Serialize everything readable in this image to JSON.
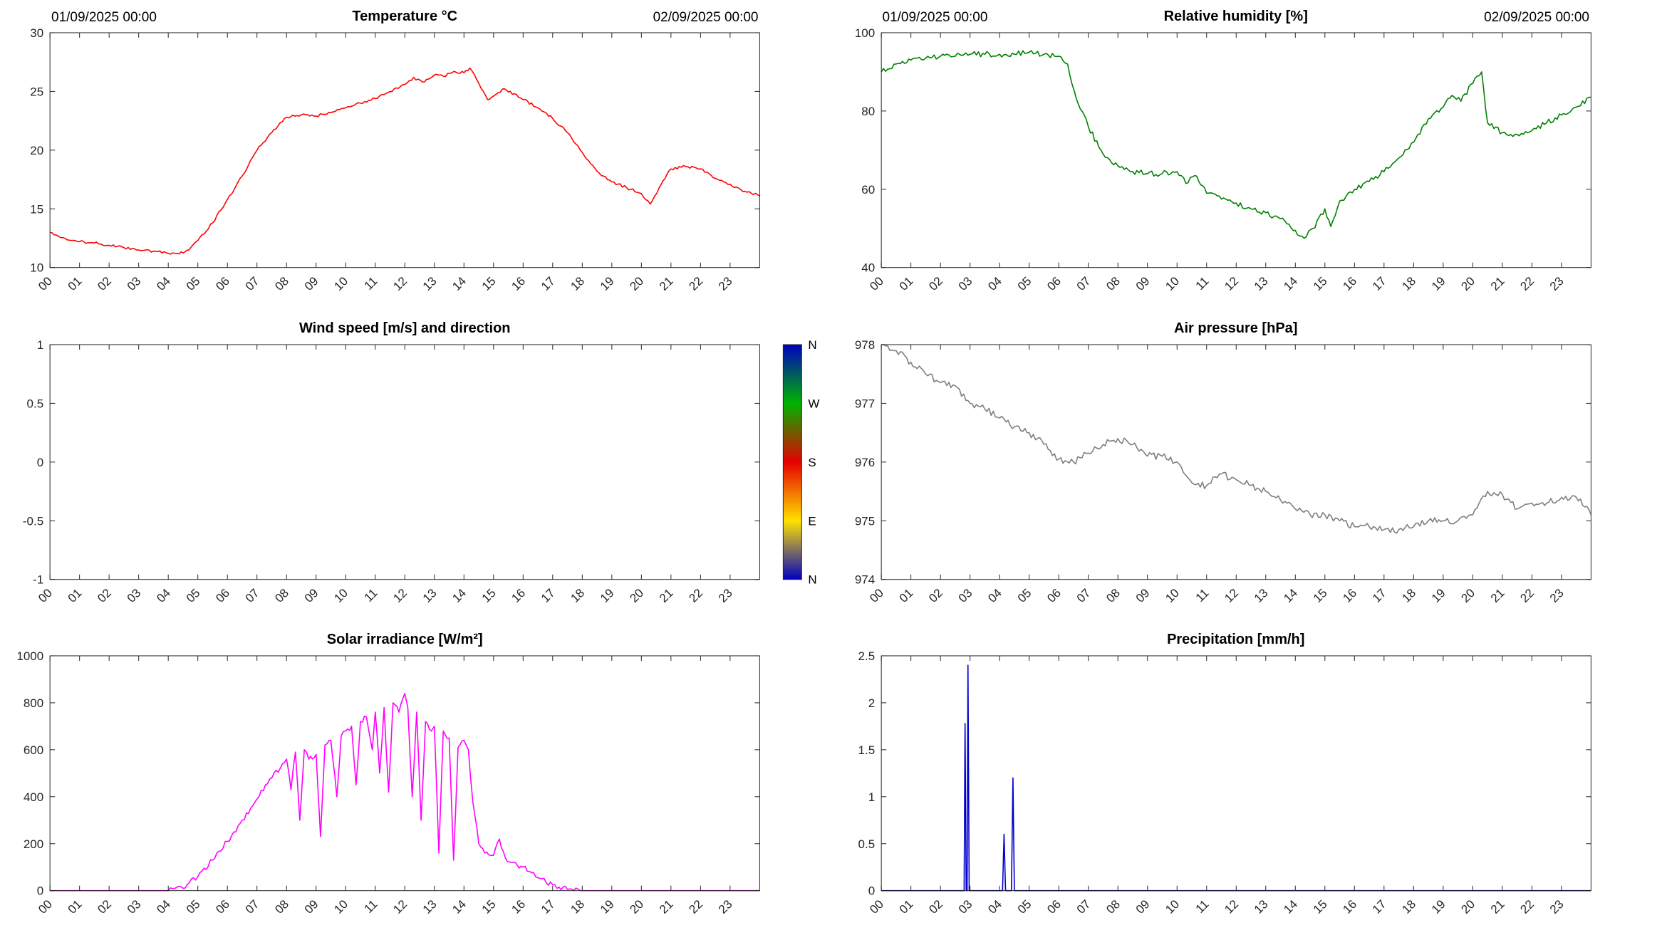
{
  "figure": {
    "background": "#ffffff"
  },
  "hours": [
    "00",
    "01",
    "02",
    "03",
    "04",
    "05",
    "06",
    "07",
    "08",
    "09",
    "10",
    "11",
    "12",
    "13",
    "14",
    "15",
    "16",
    "17",
    "18",
    "19",
    "20",
    "21",
    "22",
    "23"
  ],
  "chart_data": [
    {
      "id": "temperature",
      "type": "line",
      "title": "Temperature °C",
      "annotations": {
        "left": "01/09/2025 00:00",
        "right": "02/09/2025 00:00"
      },
      "color": "#ff0000",
      "xlim": [
        0,
        24
      ],
      "ylim": [
        10,
        30
      ],
      "yticks": [
        10,
        15,
        20,
        25,
        30
      ],
      "noise": 0.12,
      "x": [
        0,
        0.5,
        1,
        1.5,
        2,
        2.5,
        3,
        3.5,
        4,
        4.3,
        4.7,
        5,
        5.5,
        6,
        6.5,
        7,
        7.5,
        8,
        8.5,
        9,
        9.5,
        10,
        10.5,
        11,
        11.5,
        12,
        12.3,
        12.6,
        13,
        13.3,
        13.6,
        14,
        14.2,
        14.5,
        14.8,
        15,
        15.3,
        15.7,
        16,
        16.5,
        17,
        17.5,
        18,
        18.5,
        19,
        19.5,
        20,
        20.3,
        20.6,
        21,
        21.5,
        22,
        22.5,
        23,
        23.5,
        24
      ],
      "y": [
        13,
        12.5,
        12.2,
        12.1,
        11.9,
        11.7,
        11.5,
        11.4,
        11.2,
        11.2,
        11.5,
        12.3,
        13.8,
        15.8,
        17.8,
        20,
        21.5,
        22.8,
        23,
        22.9,
        23.2,
        23.6,
        24,
        24.4,
        25,
        25.6,
        26.2,
        25.8,
        26.4,
        26.3,
        26.6,
        26.6,
        27,
        25.7,
        24.3,
        24.6,
        25.2,
        24.8,
        24.3,
        23.6,
        22.7,
        21.5,
        19.8,
        18.2,
        17.3,
        16.8,
        16.3,
        15.4,
        16.8,
        18.4,
        18.6,
        18.4,
        17.6,
        17.1,
        16.5,
        16.1
      ]
    },
    {
      "id": "humidity",
      "type": "line",
      "title": "Relative humidity [%]",
      "annotations": {
        "left": "01/09/2025 00:00",
        "right": "02/09/2025 00:00"
      },
      "color": "#008000",
      "xlim": [
        0,
        24
      ],
      "ylim": [
        40,
        100
      ],
      "yticks": [
        40,
        60,
        80,
        100
      ],
      "noise": 0.7,
      "x": [
        0,
        0.5,
        1,
        1.5,
        2,
        2.5,
        3,
        3.5,
        4,
        4.5,
        5,
        5.5,
        6,
        6.3,
        6.6,
        7,
        7.5,
        8,
        8.5,
        9,
        9.5,
        10,
        10.3,
        10.6,
        11,
        11.5,
        12,
        12.5,
        13,
        13.5,
        14,
        14.3,
        14.6,
        15,
        15.2,
        15.5,
        16,
        16.5,
        17,
        17.5,
        18,
        18.5,
        19,
        19.3,
        19.6,
        20,
        20.3,
        20.5,
        21,
        21.5,
        22,
        22.5,
        23,
        23.5,
        24
      ],
      "y": [
        90,
        92,
        93,
        93.5,
        94,
        94,
        94.5,
        94.5,
        94.5,
        94.5,
        95,
        94.5,
        94,
        92,
        83,
        76,
        69,
        66,
        64.5,
        64,
        64,
        64.5,
        61.5,
        63.5,
        59,
        57.5,
        56.5,
        55,
        54,
        52.5,
        49.5,
        47.5,
        50,
        55,
        50.5,
        57,
        60,
        62,
        64.5,
        68,
        72,
        78,
        81,
        84,
        82.5,
        87,
        90,
        77,
        74.5,
        74,
        75,
        77,
        79,
        81,
        83.5
      ]
    },
    {
      "id": "wind",
      "type": "line",
      "title": "Wind speed [m/s] and direction",
      "color": "#0000ff",
      "xlim": [
        0,
        24
      ],
      "ylim": [
        -1,
        1
      ],
      "yticks": [
        -1,
        -0.5,
        0,
        0.5,
        1
      ],
      "noise": 0,
      "x": [],
      "y": [],
      "colorbar": {
        "stops": [
          {
            "pos": 0,
            "color": "#0000bf",
            "label": "N"
          },
          {
            "pos": 0.25,
            "color": "#00b400",
            "label": "W"
          },
          {
            "pos": 0.5,
            "color": "#e60000",
            "label": "S"
          },
          {
            "pos": 0.75,
            "color": "#ffe100",
            "label": "E"
          },
          {
            "pos": 1,
            "color": "#0000bf",
            "label": "N"
          }
        ]
      }
    },
    {
      "id": "pressure",
      "type": "line",
      "title": "Air pressure [hPa]",
      "color": "#7f7f7f",
      "xlim": [
        0,
        24
      ],
      "ylim": [
        974,
        978
      ],
      "yticks": [
        974,
        975,
        976,
        977,
        978
      ],
      "noise": 0.06,
      "x": [
        0,
        0.5,
        1,
        1.5,
        2,
        2.5,
        3,
        3.5,
        4,
        4.5,
        5,
        5.5,
        6,
        6.5,
        7,
        7.5,
        8,
        8.5,
        9,
        9.5,
        10,
        10.5,
        11,
        11.5,
        12,
        12.5,
        13,
        13.5,
        14,
        14.5,
        15,
        15.5,
        16,
        16.5,
        17,
        17.5,
        18,
        18.5,
        19,
        19.5,
        20,
        20.5,
        21,
        21.5,
        22,
        22.5,
        23,
        23.5,
        24
      ],
      "y": [
        978,
        977.9,
        977.7,
        977.5,
        977.35,
        977.3,
        977,
        976.9,
        976.75,
        976.6,
        976.5,
        976.3,
        976.05,
        976,
        976.15,
        976.3,
        976.4,
        976.3,
        976.1,
        976.1,
        976,
        975.65,
        975.6,
        975.8,
        975.7,
        975.6,
        975.5,
        975.35,
        975.2,
        975.1,
        975.1,
        975,
        974.9,
        974.9,
        974.85,
        974.85,
        974.9,
        975,
        975,
        975,
        975.1,
        975.5,
        975.45,
        975.2,
        975.3,
        975.3,
        975.4,
        975.4,
        975.1
      ]
    },
    {
      "id": "solar",
      "type": "line",
      "title": "Solar irradiance [W/m²]",
      "color": "#ff00ff",
      "xlim": [
        0,
        24
      ],
      "ylim": [
        0,
        1000
      ],
      "yticks": [
        0,
        200,
        400,
        600,
        800,
        1000
      ],
      "noise": 12,
      "x": [
        0,
        4,
        4.5,
        5,
        5.5,
        6,
        6.5,
        7,
        7.5,
        8,
        8.15,
        8.3,
        8.45,
        8.6,
        8.75,
        9,
        9.15,
        9.3,
        9.5,
        9.7,
        9.85,
        10,
        10.2,
        10.35,
        10.5,
        10.7,
        10.9,
        11,
        11.15,
        11.3,
        11.45,
        11.6,
        11.8,
        12,
        12.1,
        12.25,
        12.4,
        12.55,
        12.7,
        12.9,
        13,
        13.15,
        13.3,
        13.5,
        13.65,
        13.8,
        14,
        14.15,
        14.3,
        14.5,
        14.7,
        14.9,
        15,
        15.2,
        15.4,
        15.6,
        16,
        16.5,
        17,
        17.5,
        18,
        24
      ],
      "y": [
        0,
        0,
        10,
        60,
        130,
        210,
        300,
        390,
        480,
        560,
        430,
        590,
        300,
        600,
        560,
        580,
        230,
        620,
        640,
        400,
        660,
        680,
        700,
        450,
        720,
        740,
        600,
        760,
        500,
        780,
        420,
        800,
        760,
        840,
        780,
        400,
        760,
        300,
        720,
        680,
        700,
        160,
        680,
        650,
        130,
        610,
        640,
        600,
        380,
        200,
        160,
        150,
        150,
        220,
        140,
        120,
        100,
        55,
        25,
        5,
        0,
        0
      ]
    },
    {
      "id": "precipitation",
      "type": "line",
      "title": "Precipitation [mm/h]",
      "color": "#0000cc",
      "xlim": [
        0,
        24
      ],
      "ylim": [
        0,
        2.5
      ],
      "yticks": [
        0,
        0.5,
        1,
        1.5,
        2,
        2.5
      ],
      "noise": 0,
      "x": [
        0,
        2.8,
        2.83,
        2.87,
        2.9,
        2.93,
        2.97,
        3,
        4.1,
        4.15,
        4.2,
        4.25,
        4.4,
        4.45,
        4.5,
        24
      ],
      "y": [
        0,
        0,
        1.78,
        0,
        0,
        2.4,
        0,
        0,
        0,
        0.6,
        0,
        0,
        0,
        1.2,
        0,
        0
      ]
    }
  ]
}
